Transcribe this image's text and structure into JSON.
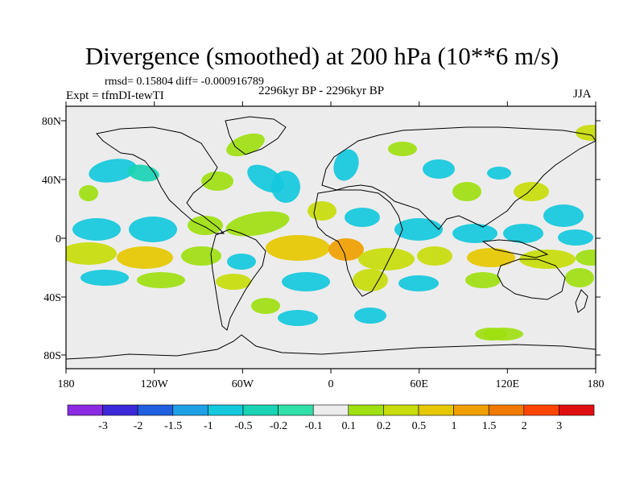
{
  "title": "Divergence (smoothed) at 200 hPa (10**6 m/s)",
  "stats": "rmsd= 0.15804 diff= -0.000916789",
  "experiment": "Expt = tfmDI-tewTI",
  "period": "2296kyr BP - 2296kyr BP",
  "season": "JJA",
  "map": {
    "lon_labels": [
      "180",
      "120W",
      "60W",
      "0",
      "60E",
      "120E",
      "180"
    ],
    "lat_labels": [
      "80N",
      "40N",
      "0",
      "40S",
      "80S"
    ]
  },
  "colorbar": {
    "labels": [
      "-3",
      "-2",
      "-1.5",
      "-1",
      "-0.5",
      "-0.2",
      "-0.1",
      "0.1",
      "0.2",
      "0.5",
      "1",
      "1.5",
      "2",
      "3"
    ],
    "colors": [
      "#8a2be2",
      "#3c28d8",
      "#1f5fe0",
      "#1ea0e6",
      "#14c8dc",
      "#19d3b4",
      "#2fe0a8",
      "#ececec",
      "#9ee010",
      "#c8dc0a",
      "#e6c800",
      "#f0a000",
      "#f07a00",
      "#ff4500",
      "#e01010"
    ]
  },
  "colors": {
    "land_outline": "#000000",
    "zero_band": "#ececec"
  }
}
